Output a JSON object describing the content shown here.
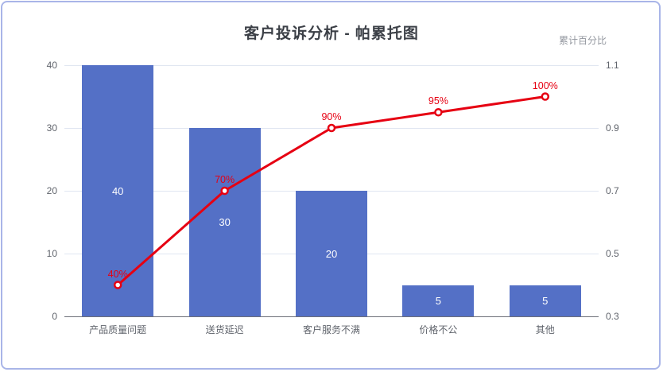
{
  "chart_data": {
    "type": "bar",
    "subtype": "pareto (bar + cumulative line)",
    "title": "客户投诉分析 - 帕累托图",
    "categories": [
      "产品质量问题",
      "送货延迟",
      "客户服务不满",
      "价格不公",
      "其他"
    ],
    "series": [
      {
        "type": "bar",
        "axis": "left",
        "values": [
          40,
          30,
          20,
          5,
          5
        ],
        "labels": [
          "40",
          "30",
          "20",
          "5",
          "5"
        ],
        "label_position": "inside-middle",
        "color": "#5470c6",
        "label_color": "#ffffff"
      },
      {
        "type": "line",
        "axis": "right",
        "values": [
          0.4,
          0.7,
          0.9,
          0.95,
          1.0
        ],
        "labels": [
          "40%",
          "70%",
          "90%",
          "95%",
          "100%"
        ],
        "label_position": "top",
        "color": "#e60012",
        "marker": "hollow-circle"
      }
    ],
    "left_axis": {
      "min": 0,
      "max": 40,
      "ticks": [
        0,
        10,
        20,
        30,
        40
      ]
    },
    "right_axis": {
      "name": "累计百分比",
      "min": 0.3,
      "max": 1.1,
      "ticks": [
        0.3,
        0.5,
        0.7,
        0.9,
        1.1
      ]
    },
    "grid": {
      "horizontal": true,
      "vertical": false,
      "color": "#e0e6f1"
    },
    "legend": false,
    "colors": {
      "bar": "#5470c6",
      "line": "#e60012",
      "card_border": "#a9b5e8",
      "axis_line": "#6e7079"
    }
  }
}
